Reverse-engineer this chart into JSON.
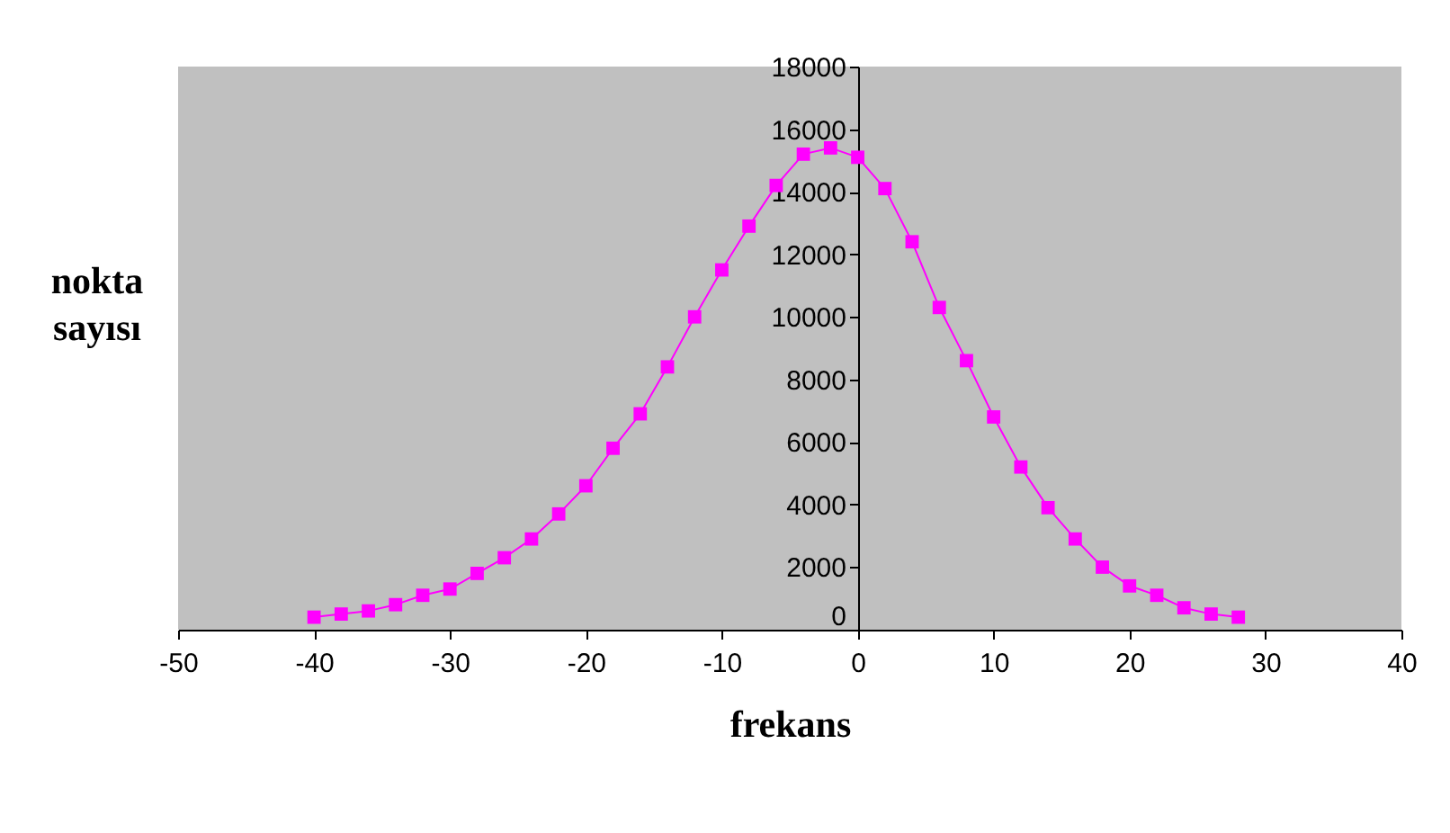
{
  "chart_data": {
    "type": "line",
    "xlabel": "frekans",
    "ylabel": "nokta sayısı",
    "x": [
      -40,
      -38,
      -36,
      -34,
      -32,
      -30,
      -28,
      -26,
      -24,
      -22,
      -20,
      -18,
      -16,
      -14,
      -12,
      -10,
      -8,
      -6,
      -4,
      -2,
      0,
      2,
      4,
      6,
      8,
      10,
      12,
      14,
      16,
      18,
      20,
      22,
      24,
      26,
      28
    ],
    "series": [
      {
        "color": "#ff00ff",
        "values": [
          400,
          500,
          600,
          800,
          1100,
          1300,
          1800,
          2300,
          2900,
          3700,
          4600,
          5800,
          6900,
          8400,
          10000,
          11500,
          12900,
          14200,
          15200,
          15400,
          15100,
          14100,
          12400,
          10300,
          8600,
          6800,
          5200,
          3900,
          2900,
          2000,
          1400,
          1100,
          700,
          500,
          400
        ]
      }
    ],
    "xlim": [
      -50,
      40
    ],
    "xticks": [
      -50,
      -40,
      -30,
      -20,
      -10,
      0,
      10,
      20,
      30,
      40
    ],
    "ylim": [
      0,
      18000
    ],
    "yticks": [
      0,
      2000,
      4000,
      6000,
      8000,
      10000,
      12000,
      14000,
      16000,
      18000
    ],
    "marker": "square",
    "line_style": "solid",
    "grid": false,
    "legend": false
  }
}
